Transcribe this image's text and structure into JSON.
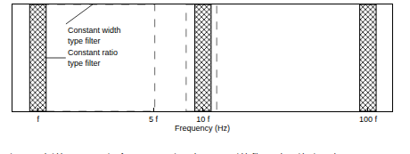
{
  "chart_data": {
    "type": "bandwidth",
    "caption": "Fig. 2 Bandwidth representation for constant ratio and constant width filter on logarithmic scale",
    "x_label": "Frequency (Hz)",
    "log": "x",
    "tick_labels": "x",
    "xlim": [
      0.7,
      140
    ],
    "xticks": [
      {
        "value": 1,
        "label": "f"
      },
      {
        "value": 5,
        "label": "5 f"
      },
      {
        "value": 10,
        "label": "10 f"
      },
      {
        "value": 100,
        "label": "100 f"
      }
    ],
    "series": [
      {
        "name": "Constant width type filter",
        "line_style": "dashed",
        "color": "#666666",
        "bands": [
          [
            0.9,
            5.1
          ],
          [
            7.9,
            12.1
          ],
          [
            97.9,
            102.1
          ]
        ]
      },
      {
        "name": "Constant ratio type filter",
        "marker": "crosshatch",
        "color": "#000000",
        "bands": [
          [
            0.89,
            1.12
          ],
          [
            8.9,
            11.2
          ],
          [
            89,
            112
          ]
        ]
      }
    ]
  }
}
